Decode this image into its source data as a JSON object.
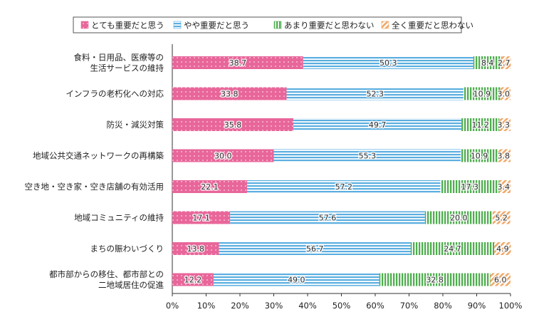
{
  "chart_data": {
    "type": "bar",
    "orientation": "horizontal",
    "stacked": "percent",
    "categories": [
      [
        "食料・日用品、医療等の",
        "生活サービスの維持"
      ],
      [
        "インフラの老朽化への対応"
      ],
      [
        "防災・減災対策"
      ],
      [
        "地域公共交通ネットワークの再構築"
      ],
      [
        "空き地・空き家・空き店舗の有効活用"
      ],
      [
        "地域コミュニティの維持"
      ],
      [
        "まちの賑わいづくり"
      ],
      [
        "都市部からの移住、都市部との",
        "二地域居住の促進"
      ]
    ],
    "series": [
      {
        "name": "とても重要だと思う",
        "color": "#e8669a",
        "pattern": "dots",
        "values": [
          38.7,
          33.8,
          35.8,
          30.0,
          22.1,
          17.1,
          13.8,
          12.2
        ]
      },
      {
        "name": "やや重要だと思う",
        "color": "#5aaee0",
        "pattern": "horizontal-stripes",
        "values": [
          50.3,
          52.3,
          49.7,
          55.3,
          57.2,
          57.6,
          56.7,
          49.0
        ]
      },
      {
        "name": "あまり重要だと思わない",
        "color": "#4fae4f",
        "pattern": "vertical-stripes",
        "values": [
          8.4,
          10.9,
          11.2,
          10.9,
          17.3,
          20.0,
          24.7,
          32.8
        ]
      },
      {
        "name": "全く重要だと思わない",
        "color": "#f0a868",
        "pattern": "diagonal-stripes",
        "values": [
          2.7,
          3.0,
          3.3,
          3.8,
          3.4,
          5.2,
          4.9,
          6.0
        ]
      }
    ],
    "value_labels": [
      [
        "38.7",
        "50.3",
        "8.4",
        "2.7"
      ],
      [
        "33.8",
        "52.3",
        "10.9",
        "3.0"
      ],
      [
        "35.8",
        "49.7",
        "11.2",
        "3.3"
      ],
      [
        "30.0",
        "55.3",
        "10.9",
        "3.8"
      ],
      [
        "22.1",
        "57.2",
        "17.3",
        "3.4"
      ],
      [
        "17.1",
        "57.6",
        "20.0",
        "5.2"
      ],
      [
        "13.8",
        "56.7",
        "24.7",
        "4.9"
      ],
      [
        "12.2",
        "49.0",
        "32.8",
        "6.0"
      ]
    ],
    "xlim": [
      0,
      100
    ],
    "xticks": [
      "0%",
      "10%",
      "20%",
      "30%",
      "40%",
      "50%",
      "60%",
      "70%",
      "80%",
      "90%",
      "100%"
    ],
    "legend_position": "top",
    "grid": false
  }
}
